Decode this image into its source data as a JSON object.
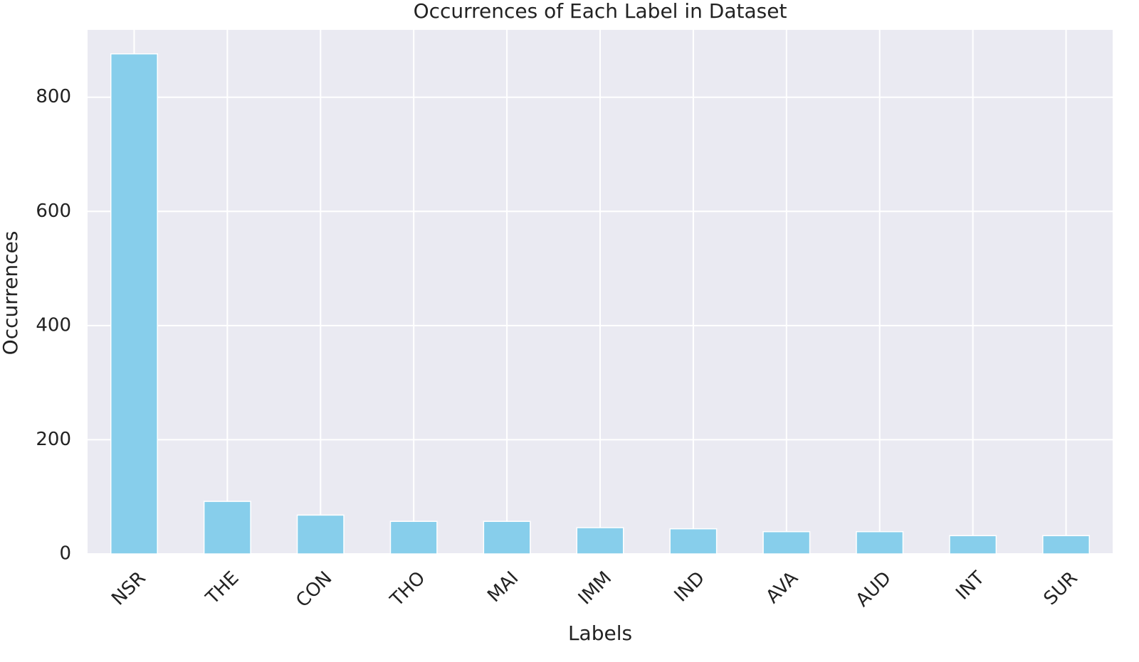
{
  "chart_data": {
    "type": "bar",
    "title": "Occurrences of Each Label in Dataset",
    "x_label": "Labels",
    "y_label": "Occurrences",
    "categories": [
      "NSR",
      "THE",
      "CON",
      "THO",
      "MAI",
      "IMM",
      "IND",
      "AVA",
      "AUD",
      "INT",
      "SUR"
    ],
    "values": [
      876,
      92,
      68,
      57,
      57,
      46,
      44,
      39,
      39,
      32,
      32
    ],
    "color": "#87ceeb",
    "background": "#eaeaf2",
    "ylim": [
      0,
      918
    ],
    "yticks": [
      0,
      200,
      400,
      600,
      800
    ],
    "grid": true
  }
}
